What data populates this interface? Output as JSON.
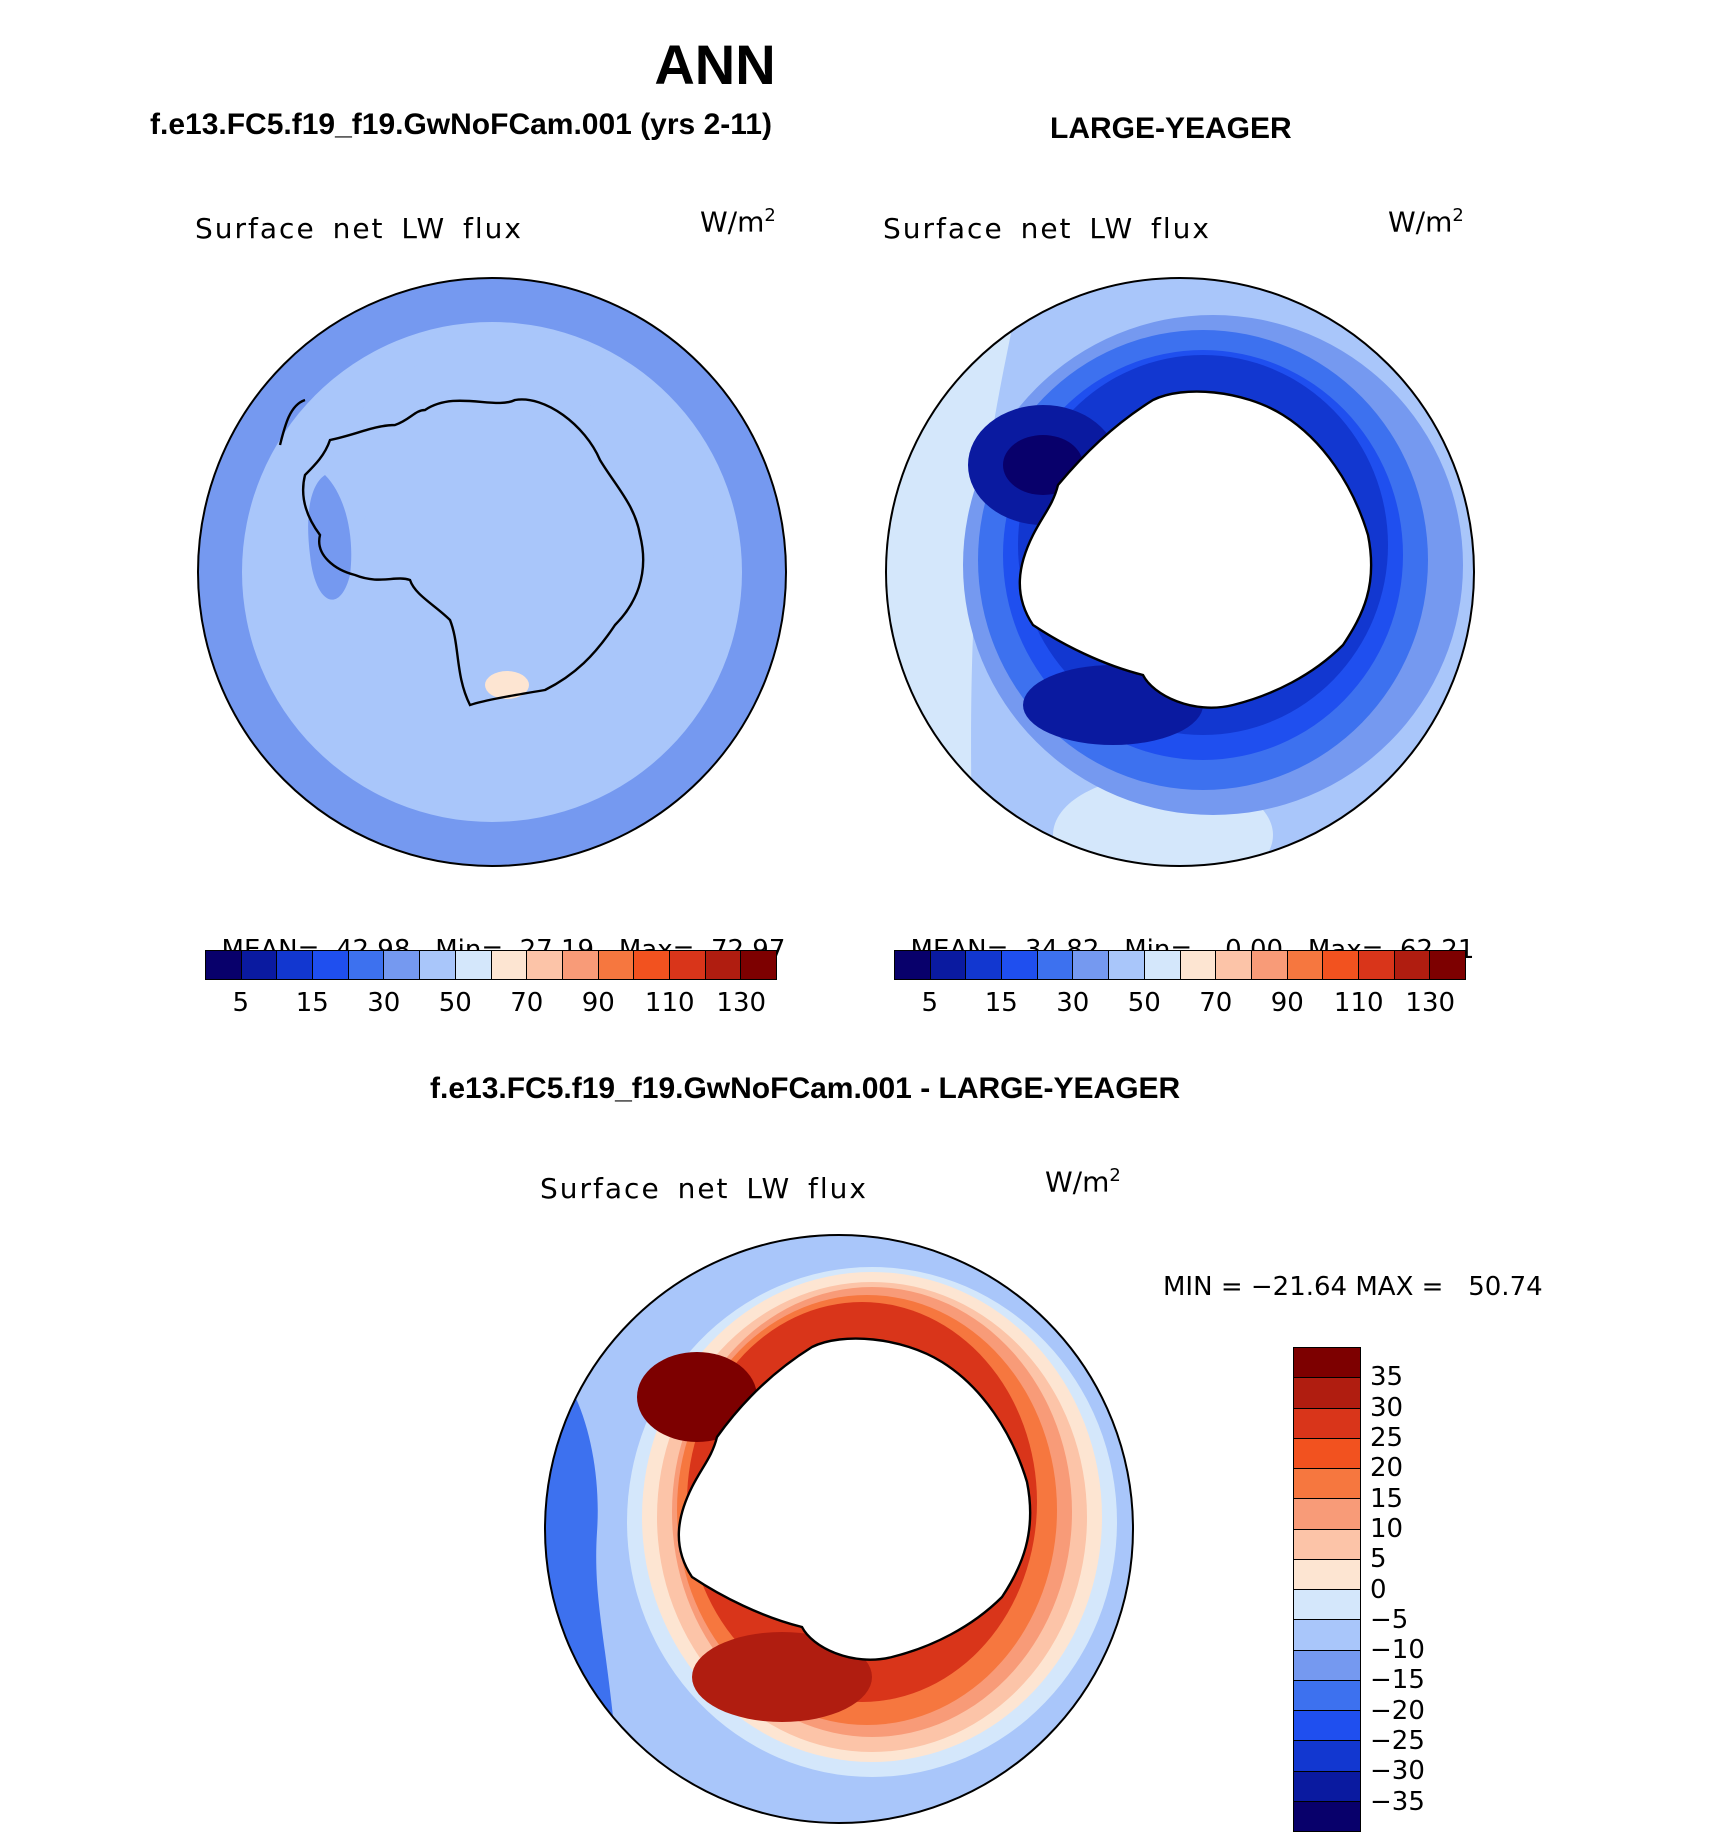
{
  "main_title": "ANN",
  "panels": {
    "left": {
      "case_title": "f.e13.FC5.f19_f19.GwNoFCam.001 (yrs 2-11)",
      "field_label": "Surface net LW flux",
      "unit_base": "W/m",
      "unit_exp": "2",
      "stats": {
        "mean_label": "MEAN=",
        "mean": "42.98",
        "min_label": "Min=",
        "min": "27.19",
        "max_label": "Max=",
        "max": "72.97"
      }
    },
    "right": {
      "case_title": "LARGE-YEAGER",
      "field_label": "Surface net LW flux",
      "unit_base": "W/m",
      "unit_exp": "2",
      "stats": {
        "mean_label": "MEAN=",
        "mean": "34.82",
        "min_label": "Min=",
        "min": "0.00",
        "max_label": "Max=",
        "max": "62.21"
      }
    },
    "diff": {
      "case_title": "f.e13.FC5.f19_f19.GwNoFCam.001 - LARGE-YEAGER",
      "field_label": "Surface net LW flux",
      "unit_base": "W/m",
      "unit_exp": "2",
      "minmax": "MIN = −21.64 MAX =   50.74"
    }
  },
  "colorbar_abs": {
    "colors": [
      "#08006b",
      "#0a1aa0",
      "#1237d0",
      "#1f4fef",
      "#3d71ef",
      "#7599f0",
      "#a9c6fa",
      "#d4e7fb",
      "#fde5d2",
      "#fcc4a8",
      "#f89b78",
      "#f6773f",
      "#f2521f",
      "#d9351a",
      "#b01d10",
      "#7d0000"
    ],
    "tick_labels": [
      "5",
      "15",
      "30",
      "50",
      "70",
      "90",
      "110",
      "130"
    ]
  },
  "colorbar_diff": {
    "colors": [
      "#7d0000",
      "#b01d10",
      "#d9351a",
      "#f2521f",
      "#f6773f",
      "#f89b78",
      "#fcc4a8",
      "#fde5d2",
      "#d4e7fb",
      "#a9c6fa",
      "#7599f0",
      "#3d71ef",
      "#1f4fef",
      "#1237d0",
      "#0a1aa0",
      "#08006b"
    ],
    "tick_labels": [
      "35",
      "30",
      "25",
      "20",
      "15",
      "10",
      "5",
      "0",
      "−5",
      "−10",
      "−15",
      "−20",
      "−25",
      "−30",
      "−35"
    ]
  }
}
